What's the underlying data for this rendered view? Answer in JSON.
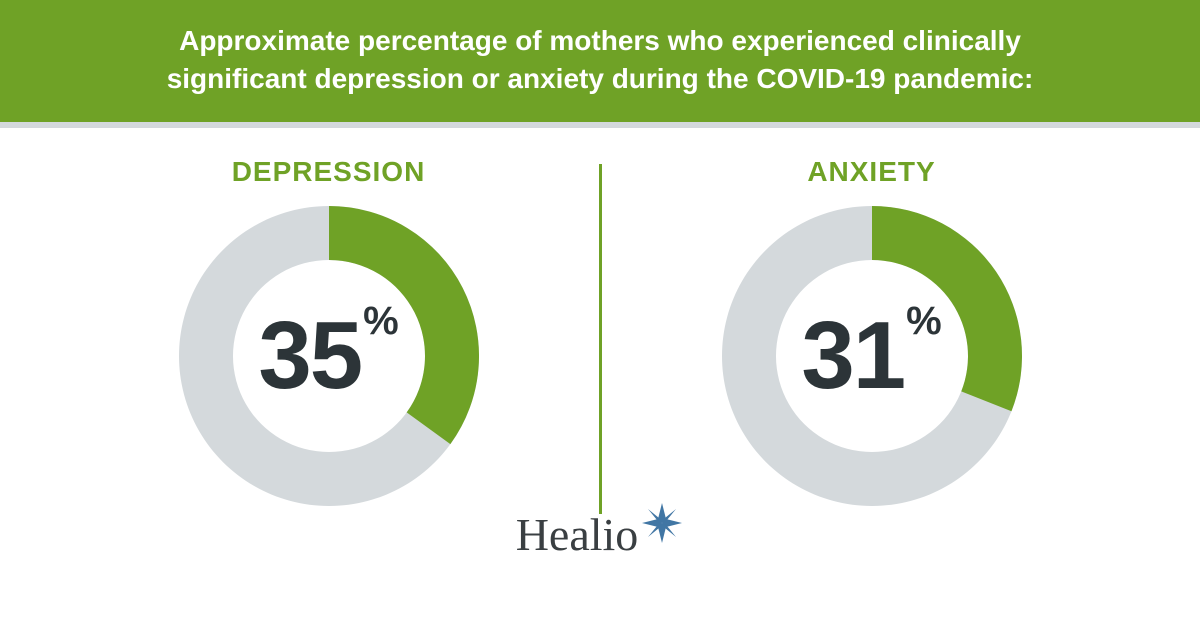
{
  "header": {
    "title_line1": "Approximate percentage of mothers who experienced clinically",
    "title_line2": "significant depression or anxiety during the COVID-19 pandemic:",
    "background_color": "#6fa226",
    "text_color": "#ffffff",
    "font_size": 28,
    "border_bottom_color": "#d4d9dc"
  },
  "charts": {
    "type": "donut",
    "ring_thickness": 54,
    "outer_radius": 150,
    "start_angle_deg": 0,
    "track_color": "#d4d9dc",
    "fill_color": "#6fa226",
    "value_text_color": "#2c3438",
    "label_color": "#6fa226",
    "label_font_size": 28,
    "value_font_size": 96,
    "percent_font_size": 40,
    "panels": [
      {
        "label": "DEPRESSION",
        "value": 35
      },
      {
        "label": "ANXIETY",
        "value": 31
      }
    ],
    "divider_color": "#6fa226"
  },
  "logo": {
    "text": "Healio",
    "text_color": "#3a3f42",
    "star_color": "#4176a4",
    "font_size": 46
  }
}
